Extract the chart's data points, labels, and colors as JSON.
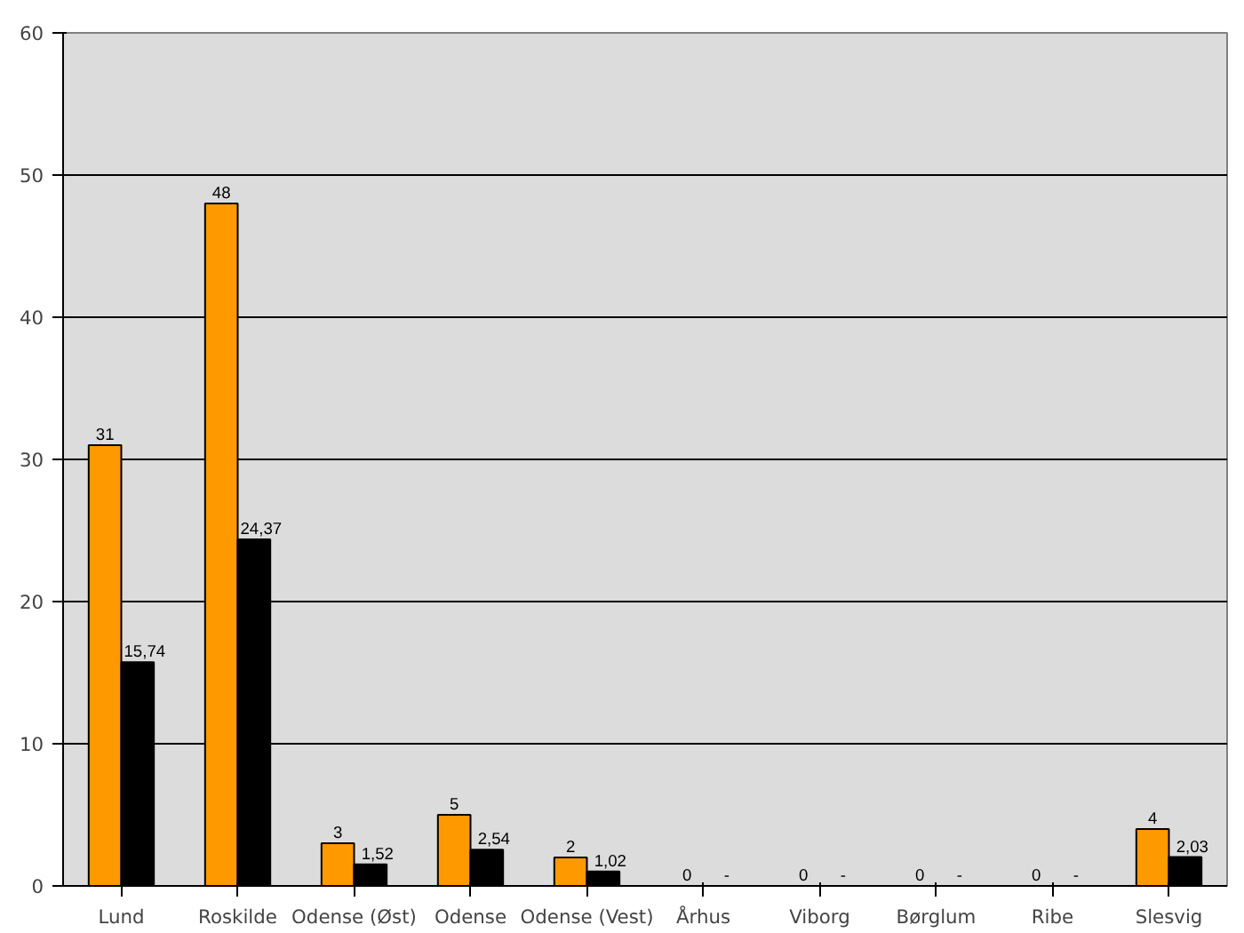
{
  "chart_data": {
    "type": "bar",
    "categories": [
      "Lund",
      "Roskilde",
      "Odense (Øst)",
      "Odense",
      "Odense (Vest)",
      "Århus",
      "Viborg",
      "Børglum",
      "Ribe",
      "Slesvig"
    ],
    "series": [
      {
        "color": "#ff9900",
        "values": [
          31,
          48,
          3,
          5,
          2,
          0,
          0,
          0,
          0,
          4
        ],
        "value_labels": [
          "31",
          "48",
          "3",
          "5",
          "2",
          "0",
          "0",
          "0",
          "0",
          "4"
        ]
      },
      {
        "color": "#000000",
        "values": [
          15.74,
          24.37,
          1.52,
          2.54,
          1.02,
          null,
          null,
          null,
          null,
          2.03
        ],
        "value_labels": [
          "15,74",
          "24,37",
          "1,52",
          "2,54",
          "1,02",
          "-",
          "-",
          "-",
          "-",
          "2,03"
        ]
      }
    ],
    "ylim": [
      0,
      60
    ],
    "yticks": [
      0,
      10,
      20,
      30,
      40,
      50,
      60
    ],
    "grid": "y"
  }
}
